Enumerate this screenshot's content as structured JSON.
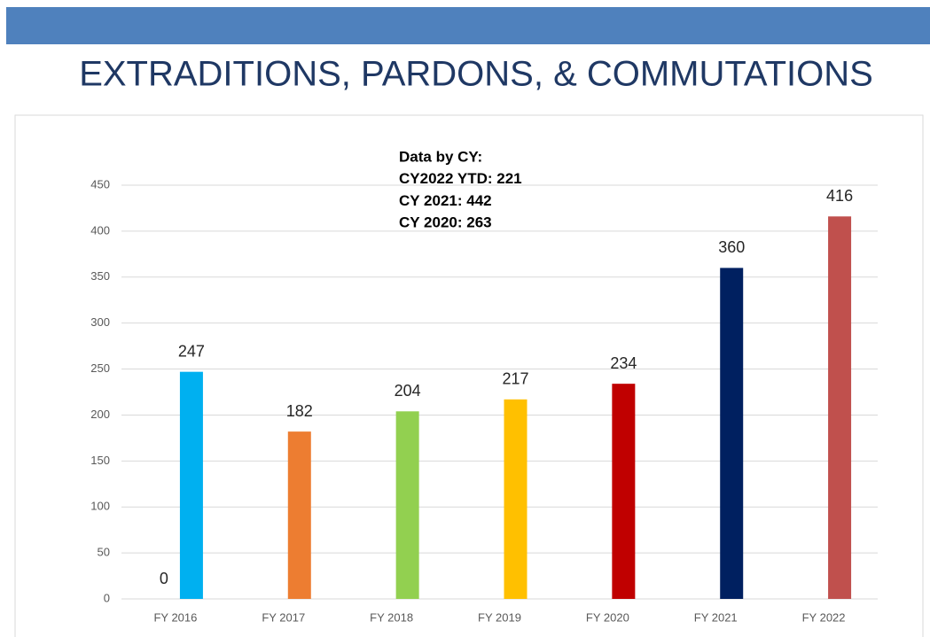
{
  "title": "EXTRADITIONS, PARDONS, & COMMUTATIONS",
  "chart_data": {
    "type": "bar",
    "annotations": [
      "Data by CY:",
      "CY2022 YTD: 221",
      "CY 2021: 442",
      "CY 2020: 263"
    ],
    "categories": [
      "FY 2016",
      "FY 2017",
      "FY 2018",
      "FY 2019",
      "FY 2020",
      "FY 2021",
      "FY 2022"
    ],
    "series": [
      {
        "values": [
          0,
          null,
          null,
          null,
          null,
          null,
          null
        ],
        "color": "#7f7f7f"
      },
      {
        "values": [
          247,
          182,
          204,
          217,
          234,
          360,
          416
        ],
        "colors": [
          "#00b0f0",
          "#ed7d31",
          "#92d050",
          "#ffc000",
          "#c00000",
          "#002060",
          "#c0504d"
        ]
      }
    ],
    "ylim": [
      0,
      450
    ],
    "yticks": [
      0,
      50,
      100,
      150,
      200,
      250,
      300,
      350,
      400,
      450
    ],
    "grid": true
  }
}
